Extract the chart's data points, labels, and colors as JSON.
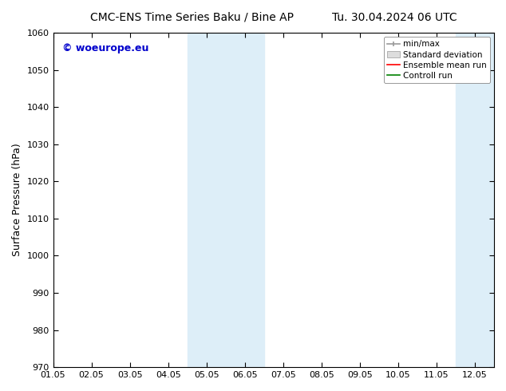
{
  "title_left": "CMC-ENS Time Series Baku / Bine AP",
  "title_right": "Tu. 30.04.2024 06 UTC",
  "ylabel": "Surface Pressure (hPa)",
  "ylim": [
    970,
    1060
  ],
  "yticks": [
    970,
    980,
    990,
    1000,
    1010,
    1020,
    1030,
    1040,
    1050,
    1060
  ],
  "xtick_labels": [
    "01.05",
    "02.05",
    "03.05",
    "04.05",
    "05.05",
    "06.05",
    "07.05",
    "08.05",
    "09.05",
    "10.05",
    "11.05",
    "12.05"
  ],
  "xtick_positions": [
    0,
    1,
    2,
    3,
    4,
    5,
    6,
    7,
    8,
    9,
    10,
    11
  ],
  "xlim": [
    0,
    11.5
  ],
  "shaded_regions": [
    {
      "xmin": 3.5,
      "xmax": 5.5,
      "color": "#ddeef8"
    },
    {
      "xmin": 10.5,
      "xmax": 11.5,
      "color": "#ddeef8"
    }
  ],
  "watermark_text": "© woeurope.eu",
  "watermark_color": "#0000cc",
  "background_color": "#ffffff",
  "legend_items": [
    {
      "label": "min/max",
      "color": "#aaaaaa",
      "type": "errorbar"
    },
    {
      "label": "Standard deviation",
      "color": "#cccccc",
      "type": "bar"
    },
    {
      "label": "Ensemble mean run",
      "color": "#ff0000",
      "type": "line"
    },
    {
      "label": "Controll run",
      "color": "#008000",
      "type": "line"
    }
  ],
  "title_fontsize": 10,
  "axis_fontsize": 9,
  "tick_fontsize": 8,
  "legend_fontsize": 7.5,
  "watermark_fontsize": 9
}
